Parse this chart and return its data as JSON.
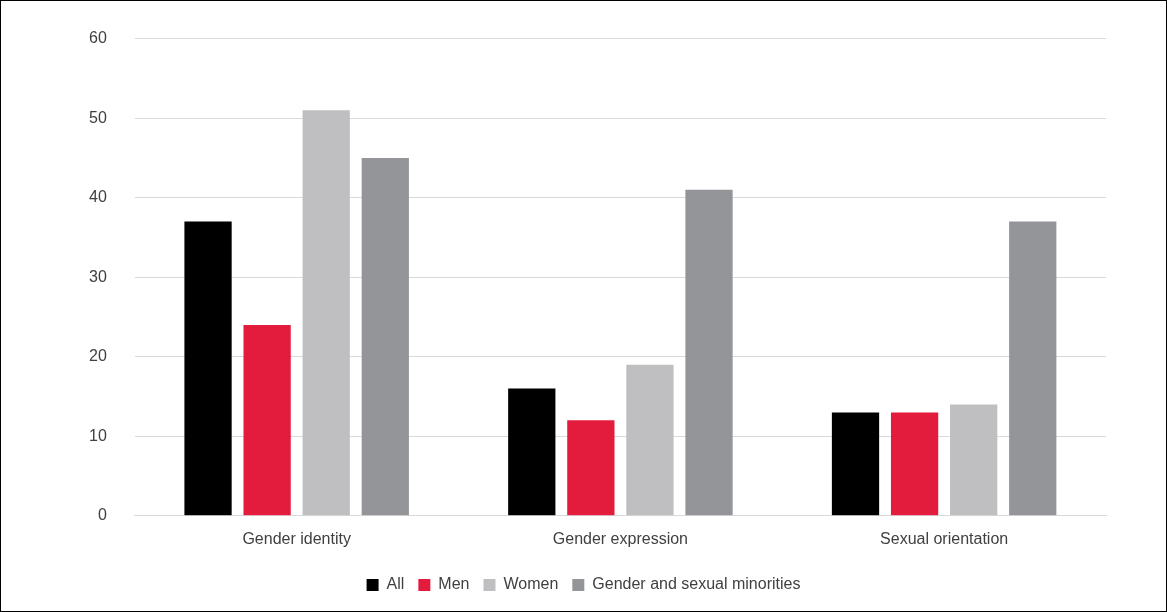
{
  "chart_data": {
    "type": "bar",
    "categories": [
      "Gender identity",
      "Gender expression",
      "Sexual orientation"
    ],
    "series": [
      {
        "name": "All",
        "color": "#000000",
        "values": [
          37,
          16,
          13
        ]
      },
      {
        "name": "Men",
        "color": "#e31b3c",
        "values": [
          24,
          12,
          13
        ]
      },
      {
        "name": "Women",
        "color": "#bfbfc1",
        "values": [
          51,
          19,
          14
        ]
      },
      {
        "name": "Gender and sexual minorities",
        "color": "#939598",
        "values": [
          45,
          41,
          37
        ]
      }
    ],
    "ylim": [
      0,
      60
    ],
    "yticks": [
      0,
      10,
      20,
      30,
      40,
      50,
      60
    ],
    "grid": "y",
    "legend": "bottom"
  }
}
